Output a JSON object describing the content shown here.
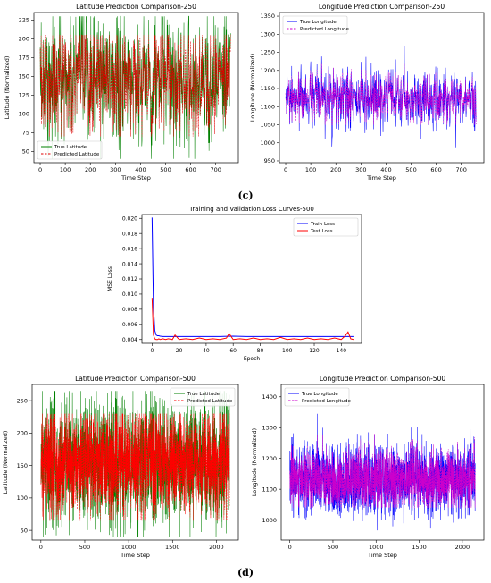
{
  "captions": {
    "c": "(c)",
    "d": "(d)"
  },
  "chart_data": [
    {
      "id": "lat250",
      "type": "line",
      "title": "Latitude Prediction Comparison-250",
      "xlabel": "Time Step",
      "ylabel": "Latitude (Normalized)",
      "xlim": [
        -25,
        790
      ],
      "ylim": [
        35,
        235
      ],
      "xticks": [
        0,
        100,
        200,
        300,
        400,
        500,
        600,
        700
      ],
      "yticks": [
        50,
        75,
        100,
        125,
        150,
        175,
        200,
        225
      ],
      "legend": "bottom-left",
      "n": 760,
      "series": [
        {
          "name": "True Latitude",
          "color": "#008000",
          "style": "solid",
          "mean": 145,
          "spread": 45,
          "min": 40,
          "max": 230
        },
        {
          "name": "Predicted Latitude",
          "color": "#e00000",
          "style": "dashed",
          "mean": 145,
          "spread": 32,
          "min": 70,
          "max": 205
        }
      ]
    },
    {
      "id": "lon250",
      "type": "line",
      "title": "Longitude Prediction Comparison-250",
      "xlabel": "Time Step",
      "ylabel": "Longitude (Normalized)",
      "xlim": [
        -25,
        790
      ],
      "ylim": [
        945,
        1360
      ],
      "xticks": [
        0,
        100,
        200,
        300,
        400,
        500,
        600,
        700
      ],
      "yticks": [
        950,
        1000,
        1050,
        1100,
        1150,
        1200,
        1250,
        1300,
        1350
      ],
      "legend": "top-left",
      "n": 760,
      "series": [
        {
          "name": "True Longitude",
          "color": "#0000ff",
          "style": "solid",
          "mean": 1120,
          "spread": 40,
          "min": 965,
          "max": 1340
        },
        {
          "name": "Predicted Longitude",
          "color": "#cc00cc",
          "style": "dashed",
          "mean": 1120,
          "spread": 25,
          "min": 1050,
          "max": 1260
        }
      ]
    },
    {
      "id": "loss500",
      "type": "line",
      "title": "Training and Validation Loss Curves-500",
      "xlabel": "Epoch",
      "ylabel": "MSE Loss",
      "xlim": [
        -7.5,
        155
      ],
      "ylim": [
        0.0035,
        0.0205
      ],
      "xticks": [
        0,
        20,
        40,
        60,
        80,
        100,
        120,
        140
      ],
      "yticks": [
        0.004,
        0.006,
        0.008,
        0.01,
        0.012,
        0.014,
        0.016,
        0.018,
        0.02
      ],
      "ytick_labels": [
        "0.004",
        "0.006",
        "0.008",
        "0.010",
        "0.012",
        "0.014",
        "0.016",
        "0.018",
        "0.020"
      ],
      "legend": "top-right",
      "series": [
        {
          "name": "Train Loss",
          "color": "#0000ff",
          "style": "solid",
          "x": [
            0,
            1,
            2,
            3,
            4,
            5,
            6,
            8,
            10,
            15,
            20,
            30,
            40,
            50,
            60,
            70,
            80,
            90,
            100,
            110,
            120,
            130,
            140,
            149
          ],
          "y": [
            0.0201,
            0.0085,
            0.0052,
            0.0046,
            0.0045,
            0.0045,
            0.00445,
            0.0044,
            0.0044,
            0.0044,
            0.0044,
            0.0044,
            0.0044,
            0.0044,
            0.00445,
            0.0044,
            0.0044,
            0.0044,
            0.0044,
            0.0044,
            0.0044,
            0.0044,
            0.0044,
            0.0044
          ]
        },
        {
          "name": "Test Loss",
          "color": "#ff0000",
          "style": "solid",
          "x": [
            0,
            1,
            2,
            3,
            4,
            5,
            6,
            8,
            10,
            12,
            15,
            17,
            20,
            25,
            30,
            35,
            40,
            45,
            50,
            55,
            57,
            60,
            65,
            70,
            75,
            80,
            85,
            90,
            95,
            100,
            105,
            110,
            115,
            120,
            125,
            130,
            135,
            140,
            143,
            145,
            147,
            149
          ],
          "y": [
            0.0095,
            0.0046,
            0.0041,
            0.004,
            0.004,
            0.0041,
            0.004,
            0.0041,
            0.004,
            0.0041,
            0.004,
            0.0046,
            0.004,
            0.0041,
            0.004,
            0.0042,
            0.004,
            0.0041,
            0.004,
            0.0042,
            0.0048,
            0.004,
            0.0041,
            0.004,
            0.0042,
            0.004,
            0.0041,
            0.004,
            0.0043,
            0.004,
            0.0041,
            0.004,
            0.0042,
            0.004,
            0.0041,
            0.004,
            0.0042,
            0.004,
            0.0045,
            0.005,
            0.0041,
            0.004
          ]
        }
      ]
    },
    {
      "id": "lat500",
      "type": "line",
      "title": "Latitude Prediction Comparison-500",
      "xlabel": "Time Step",
      "ylabel": "Latitude (Normalized)",
      "xlim": [
        -100,
        2250
      ],
      "ylim": [
        35,
        275
      ],
      "xticks": [
        0,
        500,
        1000,
        1500,
        2000
      ],
      "yticks": [
        50,
        100,
        150,
        200,
        250
      ],
      "legend": "top-right",
      "n": 2150,
      "series": [
        {
          "name": "True Latitude",
          "color": "#008000",
          "style": "solid",
          "mean": 155,
          "spread": 48,
          "min": 40,
          "max": 265
        },
        {
          "name": "Predicted Latitude",
          "color": "#ff0000",
          "style": "dashed",
          "mean": 155,
          "spread": 35,
          "min": 65,
          "max": 230
        }
      ]
    },
    {
      "id": "lon500",
      "type": "line",
      "title": "Longitude Prediction Comparison-500",
      "xlabel": "Time Step",
      "ylabel": "Longitude (Normalized)",
      "xlim": [
        -100,
        2250
      ],
      "ylim": [
        935,
        1440
      ],
      "xticks": [
        0,
        500,
        1000,
        1500,
        2000
      ],
      "yticks": [
        1000,
        1100,
        1200,
        1300,
        1400
      ],
      "legend": "top-left",
      "n": 2150,
      "series": [
        {
          "name": "True Longitude",
          "color": "#0000ff",
          "style": "solid",
          "mean": 1130,
          "spread": 55,
          "min": 950,
          "max": 1400
        },
        {
          "name": "Predicted Longitude",
          "color": "#cc00cc",
          "style": "dashed",
          "mean": 1130,
          "spread": 35,
          "min": 1040,
          "max": 1280
        }
      ]
    }
  ]
}
